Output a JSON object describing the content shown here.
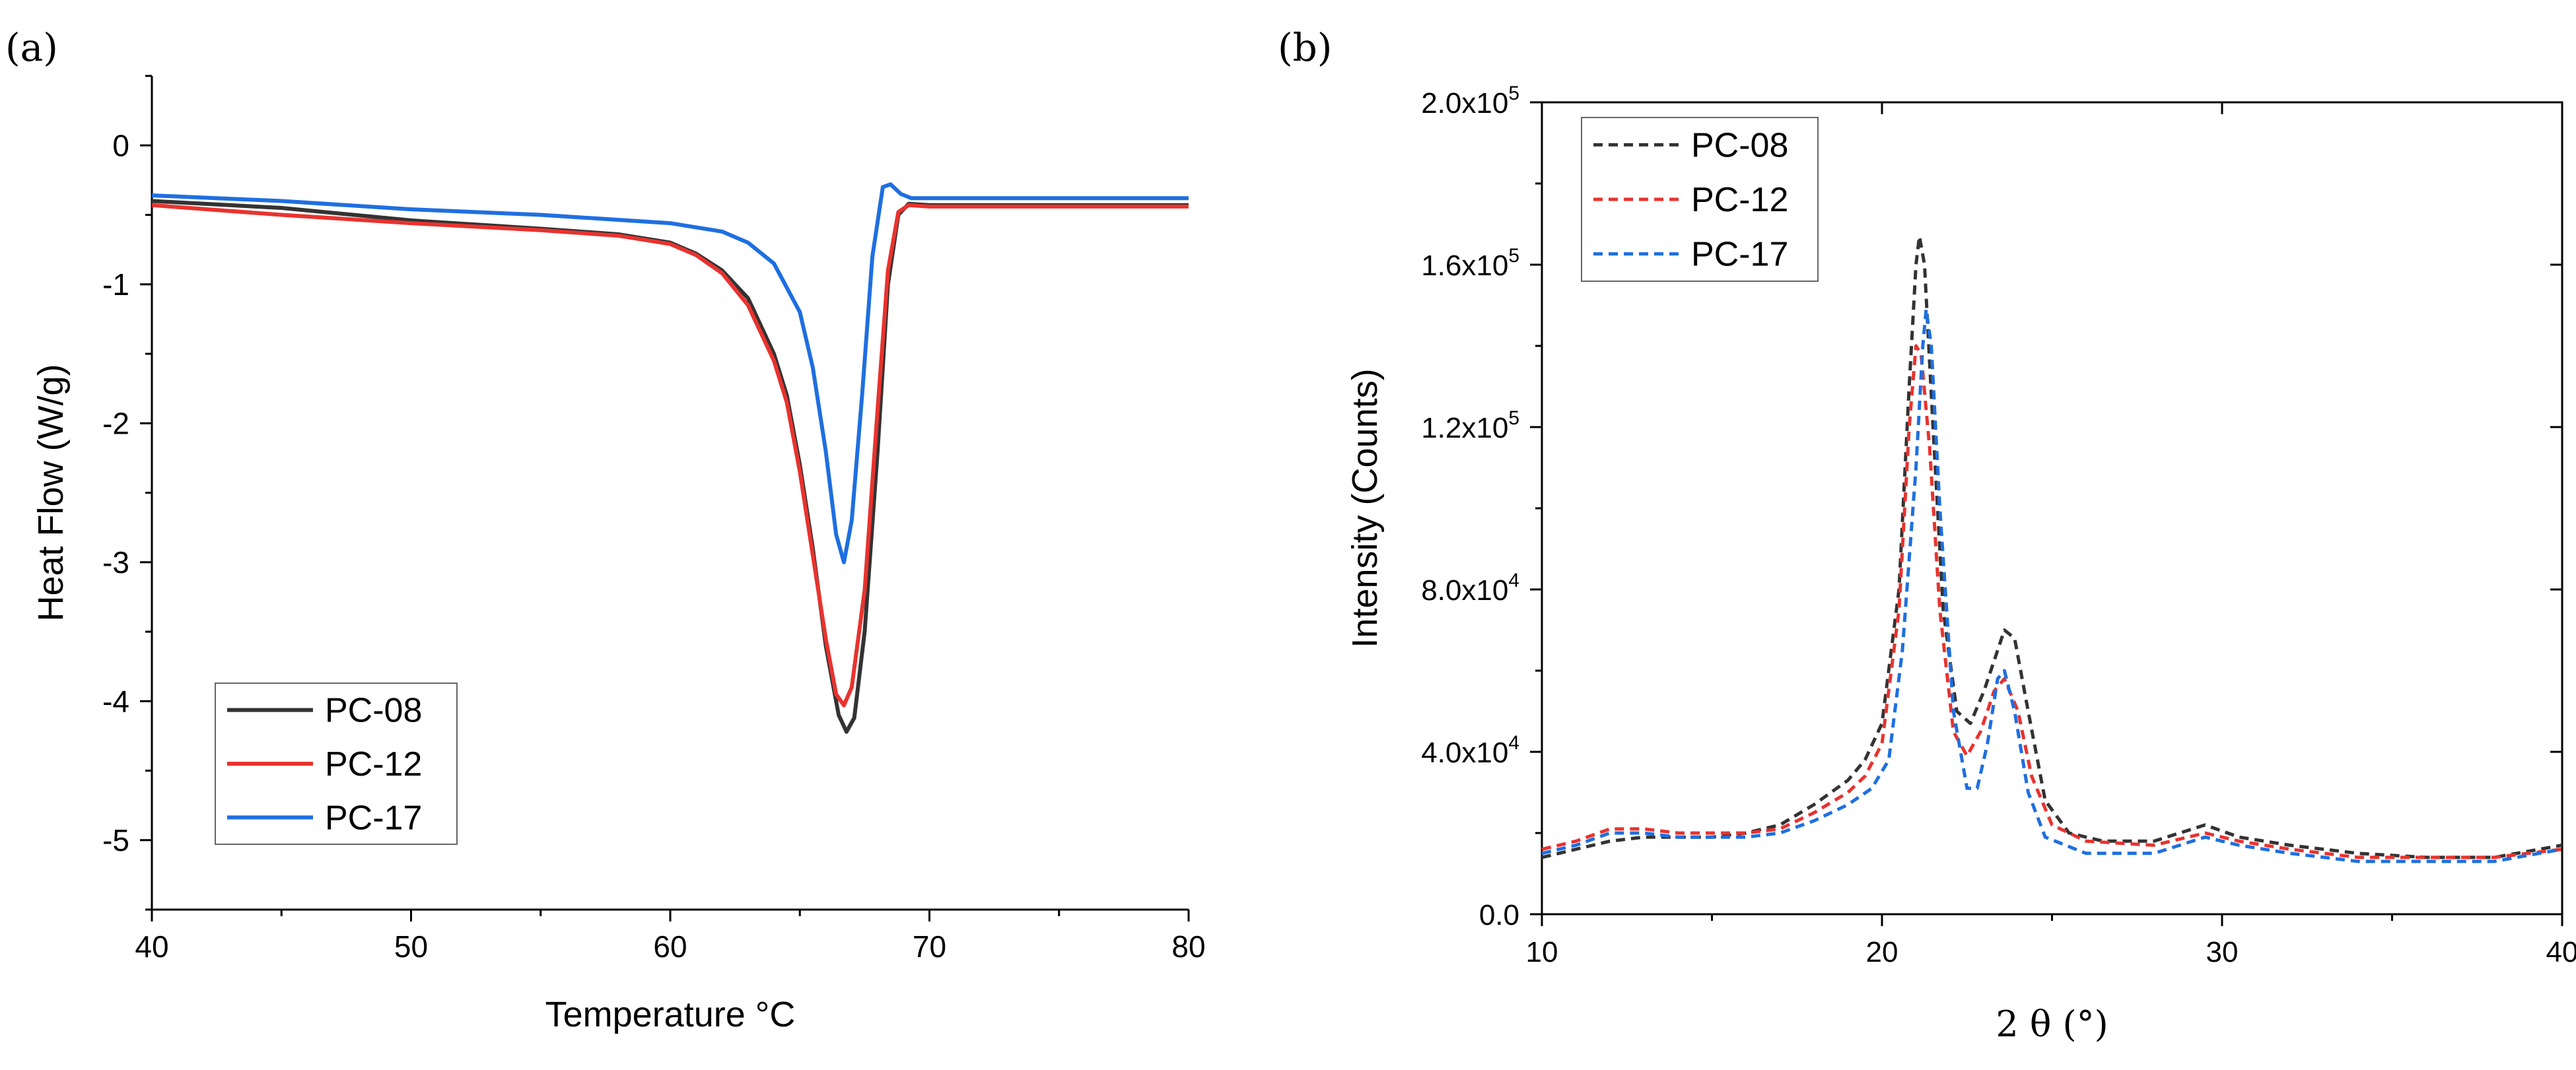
{
  "chart_data": [
    {
      "panel_label": "(a)",
      "type": "line",
      "xlabel": "Temperature °C",
      "ylabel": "Heat Flow (W/g)",
      "xlim": [
        40,
        80
      ],
      "ylim": [
        -5.5,
        0.5
      ],
      "x_ticks": [
        "40",
        "50",
        "60",
        "70",
        "80"
      ],
      "y_ticks": [
        "0",
        "-1",
        "-2",
        "-3",
        "-4",
        "-5"
      ],
      "legend_position": "bottom-left",
      "series": [
        {
          "name": "PC-08",
          "color": "#333333",
          "dashed": false,
          "points": [
            [
              40,
              -0.4
            ],
            [
              45,
              -0.45
            ],
            [
              50,
              -0.54
            ],
            [
              55,
              -0.6
            ],
            [
              58,
              -0.64
            ],
            [
              60,
              -0.7
            ],
            [
              61,
              -0.78
            ],
            [
              62,
              -0.9
            ],
            [
              63,
              -1.1
            ],
            [
              64,
              -1.5
            ],
            [
              64.5,
              -1.8
            ],
            [
              65,
              -2.3
            ],
            [
              65.5,
              -2.9
            ],
            [
              66,
              -3.6
            ],
            [
              66.5,
              -4.1
            ],
            [
              66.8,
              -4.22
            ],
            [
              67.1,
              -4.12
            ],
            [
              67.5,
              -3.5
            ],
            [
              68,
              -2.2
            ],
            [
              68.4,
              -1.0
            ],
            [
              68.8,
              -0.5
            ],
            [
              69.2,
              -0.42
            ],
            [
              70,
              -0.43
            ],
            [
              75,
              -0.43
            ],
            [
              80,
              -0.43
            ]
          ]
        },
        {
          "name": "PC-12",
          "color": "#e8332f",
          "dashed": false,
          "points": [
            [
              40,
              -0.43
            ],
            [
              45,
              -0.5
            ],
            [
              50,
              -0.56
            ],
            [
              55,
              -0.61
            ],
            [
              58,
              -0.65
            ],
            [
              60,
              -0.71
            ],
            [
              61,
              -0.79
            ],
            [
              62,
              -0.92
            ],
            [
              63,
              -1.15
            ],
            [
              64,
              -1.55
            ],
            [
              64.5,
              -1.85
            ],
            [
              65,
              -2.35
            ],
            [
              65.5,
              -2.95
            ],
            [
              66,
              -3.55
            ],
            [
              66.4,
              -3.95
            ],
            [
              66.7,
              -4.03
            ],
            [
              67,
              -3.9
            ],
            [
              67.5,
              -3.2
            ],
            [
              68,
              -1.9
            ],
            [
              68.4,
              -0.9
            ],
            [
              68.8,
              -0.48
            ],
            [
              69.2,
              -0.43
            ],
            [
              70,
              -0.44
            ],
            [
              75,
              -0.44
            ],
            [
              80,
              -0.44
            ]
          ]
        },
        {
          "name": "PC-17",
          "color": "#1f6fe0",
          "dashed": false,
          "points": [
            [
              40,
              -0.36
            ],
            [
              45,
              -0.4
            ],
            [
              50,
              -0.46
            ],
            [
              55,
              -0.5
            ],
            [
              60,
              -0.56
            ],
            [
              62,
              -0.62
            ],
            [
              63,
              -0.7
            ],
            [
              64,
              -0.85
            ],
            [
              65,
              -1.2
            ],
            [
              65.5,
              -1.6
            ],
            [
              66,
              -2.2
            ],
            [
              66.4,
              -2.8
            ],
            [
              66.7,
              -3.0
            ],
            [
              67,
              -2.7
            ],
            [
              67.4,
              -1.8
            ],
            [
              67.8,
              -0.8
            ],
            [
              68.2,
              -0.3
            ],
            [
              68.5,
              -0.28
            ],
            [
              68.9,
              -0.35
            ],
            [
              69.3,
              -0.38
            ],
            [
              70,
              -0.38
            ],
            [
              75,
              -0.38
            ],
            [
              80,
              -0.38
            ]
          ]
        }
      ]
    },
    {
      "panel_label": "(b)",
      "type": "line",
      "xlabel": "2 θ (°)",
      "ylabel": "Intensity (Counts)",
      "xlim": [
        10,
        40
      ],
      "ylim": [
        0,
        200000
      ],
      "x_ticks": [
        "10",
        "20",
        "30",
        "40"
      ],
      "y_ticks": [
        "0.0",
        "4.0x10",
        "8.0x10",
        "1.2x10",
        "1.6x10",
        "2.0x10"
      ],
      "y_tick_exponents": [
        "",
        "4",
        "4",
        "5",
        "5",
        "5"
      ],
      "legend_position": "top-left",
      "series": [
        {
          "name": "PC-08",
          "color": "#333333",
          "dashed": true,
          "points": [
            [
              10,
              14000
            ],
            [
              11,
              16000
            ],
            [
              12,
              18000
            ],
            [
              13,
              19000
            ],
            [
              14,
              19000
            ],
            [
              15,
              19000
            ],
            [
              16,
              20000
            ],
            [
              17,
              22000
            ],
            [
              18,
              27000
            ],
            [
              19,
              33000
            ],
            [
              19.5,
              38000
            ],
            [
              20,
              47000
            ],
            [
              20.5,
              80000
            ],
            [
              20.8,
              130000
            ],
            [
              21,
              160000
            ],
            [
              21.1,
              167000
            ],
            [
              21.25,
              160000
            ],
            [
              21.5,
              120000
            ],
            [
              21.8,
              75000
            ],
            [
              22.2,
              50000
            ],
            [
              22.6,
              47000
            ],
            [
              23,
              55000
            ],
            [
              23.4,
              65000
            ],
            [
              23.6,
              70000
            ],
            [
              23.9,
              68000
            ],
            [
              24.3,
              50000
            ],
            [
              24.8,
              28000
            ],
            [
              25.5,
              20000
            ],
            [
              26.5,
              18000
            ],
            [
              28,
              18000
            ],
            [
              29.5,
              22000
            ],
            [
              30.5,
              19000
            ],
            [
              32,
              17000
            ],
            [
              34,
              15000
            ],
            [
              36,
              14000
            ],
            [
              38,
              14000
            ],
            [
              40,
              17000
            ]
          ]
        },
        {
          "name": "PC-12",
          "color": "#e8332f",
          "dashed": true,
          "points": [
            [
              10,
              16000
            ],
            [
              11,
              18000
            ],
            [
              12,
              21000
            ],
            [
              13,
              21000
            ],
            [
              14,
              20000
            ],
            [
              15,
              20000
            ],
            [
              16,
              20000
            ],
            [
              17,
              21000
            ],
            [
              18,
              25000
            ],
            [
              19,
              30000
            ],
            [
              19.5,
              34000
            ],
            [
              20,
              42000
            ],
            [
              20.5,
              75000
            ],
            [
              20.8,
              120000
            ],
            [
              21,
              140000
            ],
            [
              21.15,
              138000
            ],
            [
              21.4,
              115000
            ],
            [
              21.7,
              75000
            ],
            [
              22.1,
              45000
            ],
            [
              22.5,
              39000
            ],
            [
              22.9,
              45000
            ],
            [
              23.3,
              55000
            ],
            [
              23.6,
              58000
            ],
            [
              24,
              50000
            ],
            [
              24.4,
              34000
            ],
            [
              25,
              22000
            ],
            [
              26,
              18000
            ],
            [
              28,
              17000
            ],
            [
              29.5,
              20000
            ],
            [
              30.5,
              18000
            ],
            [
              32,
              16000
            ],
            [
              34,
              14000
            ],
            [
              36,
              14000
            ],
            [
              38,
              14000
            ],
            [
              40,
              16000
            ]
          ]
        },
        {
          "name": "PC-17",
          "color": "#1f6fe0",
          "dashed": true,
          "points": [
            [
              10,
              15000
            ],
            [
              11,
              17000
            ],
            [
              12,
              20000
            ],
            [
              13,
              20000
            ],
            [
              14,
              19000
            ],
            [
              15,
              19000
            ],
            [
              16,
              19000
            ],
            [
              17,
              20000
            ],
            [
              18,
              23000
            ],
            [
              19,
              27000
            ],
            [
              19.7,
              31000
            ],
            [
              20.2,
              38000
            ],
            [
              20.6,
              65000
            ],
            [
              21,
              110000
            ],
            [
              21.2,
              140000
            ],
            [
              21.3,
              149000
            ],
            [
              21.45,
              140000
            ],
            [
              21.7,
              100000
            ],
            [
              22.1,
              50000
            ],
            [
              22.5,
              31000
            ],
            [
              22.8,
              31000
            ],
            [
              23.1,
              42000
            ],
            [
              23.4,
              58000
            ],
            [
              23.6,
              60000
            ],
            [
              23.9,
              50000
            ],
            [
              24.3,
              30000
            ],
            [
              24.8,
              19000
            ],
            [
              26,
              15000
            ],
            [
              28,
              15000
            ],
            [
              29.5,
              19000
            ],
            [
              30.5,
              17000
            ],
            [
              32,
              15000
            ],
            [
              34,
              13000
            ],
            [
              36,
              13000
            ],
            [
              38,
              13000
            ],
            [
              40,
              16000
            ]
          ]
        }
      ]
    }
  ]
}
